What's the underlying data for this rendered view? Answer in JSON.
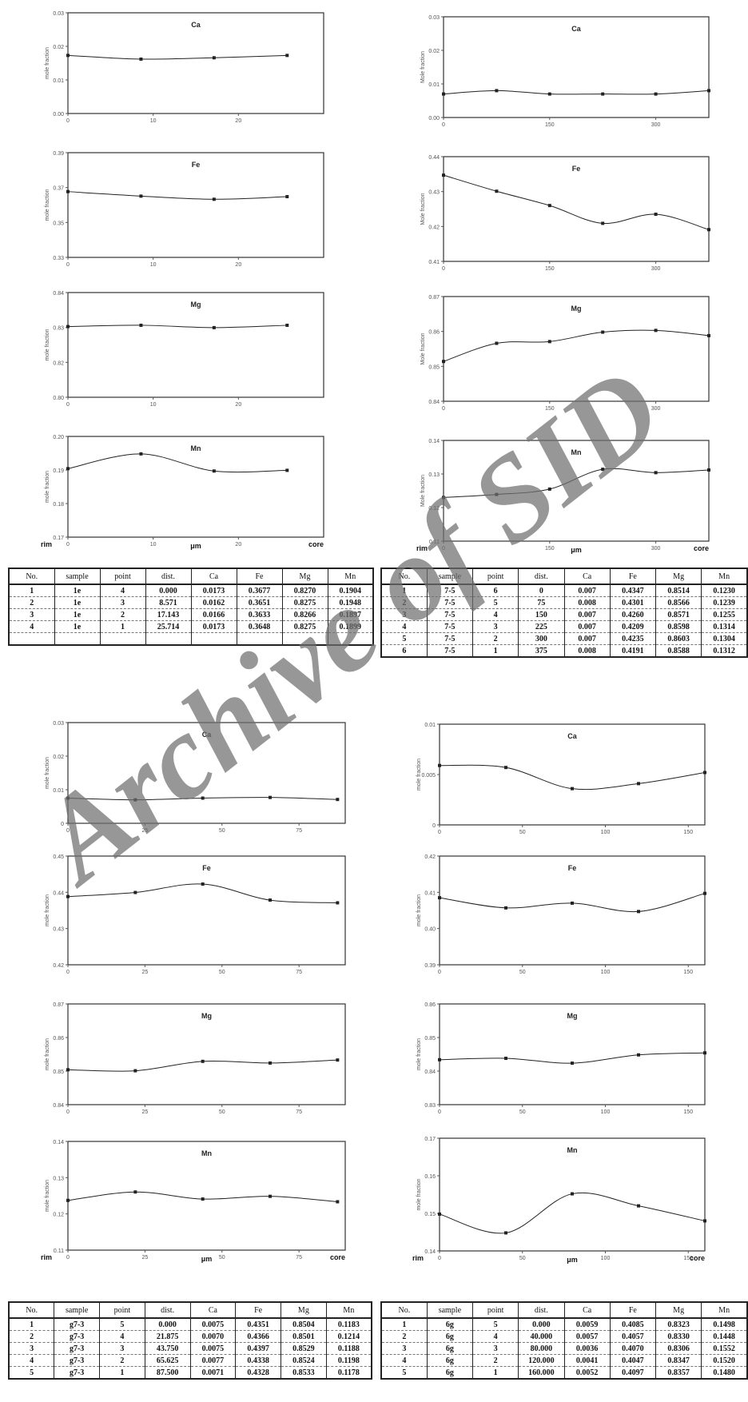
{
  "chart_data": [
    {
      "id": "A-Ca",
      "type": "line",
      "title": "Ca",
      "ylabel": "mole fraction",
      "x": [
        0,
        8.571,
        17.143,
        25.714
      ],
      "values": [
        0.0173,
        0.0162,
        0.0166,
        0.0173
      ],
      "xlim": [
        0,
        30
      ],
      "ylim": [
        0,
        0.03
      ],
      "yticks": [
        "0.03",
        "0.02",
        "0.01",
        "0.00"
      ],
      "xticks": [
        "0",
        "10",
        "20"
      ],
      "xtick_vals": [
        0,
        10,
        20
      ]
    },
    {
      "id": "A-Fe",
      "type": "line",
      "title": "Fe",
      "ylabel": "mole fraction",
      "x": [
        0,
        8.571,
        17.143,
        25.714
      ],
      "values": [
        0.3677,
        0.3651,
        0.3633,
        0.3648
      ],
      "xlim": [
        0,
        30
      ],
      "ylim": [
        0.33,
        0.39
      ],
      "yticks": [
        "0.39",
        "0.37",
        "0.35",
        "0.33"
      ],
      "xticks": [
        "0",
        "10",
        "20"
      ],
      "xtick_vals": [
        0,
        10,
        20
      ]
    },
    {
      "id": "A-Mg",
      "type": "line",
      "title": "Mg",
      "ylabel": "mole fraction",
      "x": [
        0,
        8.571,
        17.143,
        25.714
      ],
      "values": [
        0.827,
        0.8275,
        0.8266,
        0.8275
      ],
      "xlim": [
        0,
        30
      ],
      "ylim": [
        0.8,
        0.84
      ],
      "yticks": [
        "0.84",
        "0.83",
        "0.82",
        "0.80"
      ],
      "xticks": [
        "0",
        "10",
        "20"
      ],
      "xtick_vals": [
        0,
        10,
        20
      ]
    },
    {
      "id": "A-Mn",
      "type": "line",
      "title": "Mn",
      "ylabel": "mole fraction",
      "x": [
        0,
        8.571,
        17.143,
        25.714
      ],
      "values": [
        0.1904,
        0.1948,
        0.1897,
        0.1899
      ],
      "xlim": [
        0,
        30
      ],
      "ylim": [
        0.17,
        0.2
      ],
      "yticks": [
        "0.20",
        "0.19",
        "0.18",
        "0.17"
      ],
      "xticks": [
        "0",
        "10",
        "20"
      ],
      "xtick_vals": [
        0,
        10,
        20
      ],
      "xlabel": "μm",
      "rim": "rim",
      "core": "core"
    },
    {
      "id": "B-Ca",
      "type": "line",
      "title": "Ca",
      "ylabel": "Mole fraction",
      "x": [
        0,
        75,
        150,
        225,
        300,
        375
      ],
      "values": [
        0.007,
        0.008,
        0.007,
        0.007,
        0.007,
        0.008
      ],
      "xlim": [
        0,
        375
      ],
      "ylim": [
        0,
        0.03
      ],
      "yticks": [
        "0.03",
        "0.02",
        "0.01",
        "0.00"
      ],
      "xticks": [
        "0",
        "150",
        "300"
      ],
      "xtick_vals": [
        0,
        150,
        300
      ]
    },
    {
      "id": "B-Fe",
      "type": "line",
      "title": "Fe",
      "ylabel": "Mole fraction",
      "x": [
        0,
        75,
        150,
        225,
        300,
        375
      ],
      "values": [
        0.4347,
        0.4301,
        0.426,
        0.4209,
        0.4235,
        0.4191
      ],
      "xlim": [
        0,
        375
      ],
      "ylim": [
        0.41,
        0.44
      ],
      "yticks": [
        "0.44",
        "0.43",
        "0.42",
        "0.41"
      ],
      "xticks": [
        "0",
        "150",
        "300"
      ],
      "xtick_vals": [
        0,
        150,
        300
      ]
    },
    {
      "id": "B-Mg",
      "type": "line",
      "title": "Mg",
      "ylabel": "Mole fraction",
      "x": [
        0,
        75,
        150,
        225,
        300,
        375
      ],
      "values": [
        0.8514,
        0.8566,
        0.8571,
        0.8598,
        0.8603,
        0.8588
      ],
      "xlim": [
        0,
        375
      ],
      "ylim": [
        0.84,
        0.87
      ],
      "yticks": [
        "0.87",
        "0.86",
        "0.85",
        "0.84"
      ],
      "xticks": [
        "0",
        "150",
        "300"
      ],
      "xtick_vals": [
        0,
        150,
        300
      ]
    },
    {
      "id": "B-Mn",
      "type": "line",
      "title": "Mn",
      "ylabel": "Mole fraction",
      "x": [
        0,
        75,
        150,
        225,
        300,
        375
      ],
      "values": [
        0.123,
        0.1239,
        0.1255,
        0.1314,
        0.1304,
        0.1312
      ],
      "xlim": [
        0,
        375
      ],
      "ylim": [
        0.11,
        0.14
      ],
      "yticks": [
        "0.14",
        "0.13",
        "0.12",
        "0.11"
      ],
      "xticks": [
        "0",
        "150",
        "300"
      ],
      "xtick_vals": [
        0,
        150,
        300
      ],
      "xlabel": "μm",
      "rim": "rim",
      "core": "core"
    },
    {
      "id": "C-Ca",
      "type": "line",
      "title": "Ca",
      "ylabel": "mole fraction",
      "x": [
        0,
        21.875,
        43.75,
        65.625,
        87.5
      ],
      "values": [
        0.0075,
        0.007,
        0.0075,
        0.0077,
        0.0071
      ],
      "xlim": [
        0,
        90
      ],
      "ylim": [
        0,
        0.03
      ],
      "yticks": [
        "0.03",
        "0.02",
        "0.01",
        "0"
      ],
      "xticks": [
        "0",
        "25",
        "50",
        "75"
      ],
      "xtick_vals": [
        0,
        25,
        50,
        75
      ]
    },
    {
      "id": "C-Fe",
      "type": "line",
      "title": "Fe",
      "ylabel": "mole fraction",
      "x": [
        0,
        21.875,
        43.75,
        65.625,
        87.5
      ],
      "values": [
        0.4351,
        0.4366,
        0.4397,
        0.4338,
        0.4328
      ],
      "xlim": [
        0,
        90
      ],
      "ylim": [
        0.41,
        0.45
      ],
      "yticks": [
        "0.45",
        "0.44",
        "0.43",
        "0.42"
      ],
      "xticks": [
        "0",
        "25",
        "50",
        "75"
      ],
      "xtick_vals": [
        0,
        25,
        50,
        75
      ]
    },
    {
      "id": "C-Mg",
      "type": "line",
      "title": "Mg",
      "ylabel": "mole fraction",
      "x": [
        0,
        21.875,
        43.75,
        65.625,
        87.5
      ],
      "values": [
        0.8504,
        0.8501,
        0.8529,
        0.8524,
        0.8533
      ],
      "xlim": [
        0,
        90
      ],
      "ylim": [
        0.84,
        0.87
      ],
      "yticks": [
        "0.87",
        "0.86",
        "0.85",
        "0.84"
      ],
      "xticks": [
        "0",
        "25",
        "50",
        "75"
      ],
      "xtick_vals": [
        0,
        25,
        50,
        75
      ]
    },
    {
      "id": "C-Mn",
      "type": "line",
      "title": "Mn",
      "ylabel": "mole fraction",
      "x": [
        0,
        21.875,
        43.75,
        65.625,
        87.5
      ],
      "values": [
        0.1183,
        0.1214,
        0.1188,
        0.1198,
        0.1178
      ],
      "xlim": [
        0,
        90
      ],
      "ylim": [
        0.1,
        0.14
      ],
      "yticks": [
        "0.14",
        "0.13",
        "0.12",
        "0.11"
      ],
      "xticks": [
        "0",
        "25",
        "50",
        "75"
      ],
      "xtick_vals": [
        0,
        25,
        50,
        75
      ],
      "xlabel": "μm",
      "rim": "rim",
      "core": "core"
    },
    {
      "id": "D-Ca",
      "type": "line",
      "title": "Ca",
      "ylabel": "mole fraction",
      "x": [
        0,
        40,
        80,
        120,
        160
      ],
      "values": [
        0.0059,
        0.0057,
        0.0036,
        0.0041,
        0.0052
      ],
      "xlim": [
        0,
        160
      ],
      "ylim": [
        0,
        0.01
      ],
      "yticks": [
        "0.01",
        "0.005",
        "0"
      ],
      "xticks": [
        "0",
        "50",
        "100",
        "150"
      ],
      "xtick_vals": [
        0,
        50,
        100,
        150
      ]
    },
    {
      "id": "D-Fe",
      "type": "line",
      "title": "Fe",
      "ylabel": "mole fraction",
      "x": [
        0,
        40,
        80,
        120,
        160
      ],
      "values": [
        0.4085,
        0.4057,
        0.407,
        0.4047,
        0.4097
      ],
      "xlim": [
        0,
        160
      ],
      "ylim": [
        0.39,
        0.42
      ],
      "yticks": [
        "0.42",
        "0.41",
        "0.40",
        "0.39"
      ],
      "xticks": [
        "0",
        "50",
        "100",
        "150"
      ],
      "xtick_vals": [
        0,
        50,
        100,
        150
      ]
    },
    {
      "id": "D-Mg",
      "type": "line",
      "title": "Mg",
      "ylabel": "mole fraction",
      "x": [
        0,
        40,
        80,
        120,
        160
      ],
      "values": [
        0.8323,
        0.833,
        0.8306,
        0.8347,
        0.8357
      ],
      "xlim": [
        0,
        160
      ],
      "ylim": [
        0.81,
        0.86
      ],
      "yticks": [
        "0.86",
        "0.85",
        "0.84",
        "0.83"
      ],
      "xticks": [
        "0",
        "50",
        "100",
        "150"
      ],
      "xtick_vals": [
        0,
        50,
        100,
        150
      ]
    },
    {
      "id": "D-Mn",
      "type": "line",
      "title": "Mn",
      "ylabel": "mole fraction",
      "x": [
        0,
        40,
        80,
        120,
        160
      ],
      "values": [
        0.1498,
        0.1448,
        0.1552,
        0.152,
        0.148
      ],
      "xlim": [
        0,
        160
      ],
      "ylim": [
        0.14,
        0.17
      ],
      "yticks": [
        "0.17",
        "0.16",
        "0.15",
        "0.14"
      ],
      "xticks": [
        "0",
        "50",
        "100",
        "150"
      ],
      "xtick_vals": [
        0,
        50,
        100,
        150
      ],
      "xlabel": "μm",
      "rim": "rim",
      "core": "core"
    }
  ],
  "tables": [
    {
      "id": "T-A",
      "headers": [
        "No.",
        "sample",
        "point",
        "dist.",
        "Ca",
        "Fe",
        "Mg",
        "Mn"
      ],
      "rows": [
        [
          "1",
          "1e",
          "4",
          "0.000",
          "0.0173",
          "0.3677",
          "0.8270",
          "0.1904"
        ],
        [
          "2",
          "1e",
          "3",
          "8.571",
          "0.0162",
          "0.3651",
          "0.8275",
          "0.1948"
        ],
        [
          "3",
          "1e",
          "2",
          "17.143",
          "0.0166",
          "0.3633",
          "0.8266",
          "0.1897"
        ],
        [
          "4",
          "1e",
          "1",
          "25.714",
          "0.0173",
          "0.3648",
          "0.8275",
          "0.1899"
        ],
        [
          "",
          "",
          "",
          "",
          "",
          "",
          "",
          ""
        ]
      ]
    },
    {
      "id": "T-B",
      "headers": [
        "No.",
        "sample",
        "point",
        "dist.",
        "Ca",
        "Fe",
        "Mg",
        "Mn"
      ],
      "rows": [
        [
          "1",
          "7-5",
          "6",
          "0",
          "0.007",
          "0.4347",
          "0.8514",
          "0.1230"
        ],
        [
          "2",
          "7-5",
          "5",
          "75",
          "0.008",
          "0.4301",
          "0.8566",
          "0.1239"
        ],
        [
          "3",
          "7-5",
          "4",
          "150",
          "0.007",
          "0.4260",
          "0.8571",
          "0.1255"
        ],
        [
          "4",
          "7-5",
          "3",
          "225",
          "0.007",
          "0.4209",
          "0.8598",
          "0.1314"
        ],
        [
          "5",
          "7-5",
          "2",
          "300",
          "0.007",
          "0.4235",
          "0.8603",
          "0.1304"
        ],
        [
          "6",
          "7-5",
          "1",
          "375",
          "0.008",
          "0.4191",
          "0.8588",
          "0.1312"
        ]
      ]
    },
    {
      "id": "T-C",
      "headers": [
        "No.",
        "sample",
        "point",
        "dist.",
        "Ca",
        "Fe",
        "Mg",
        "Mn"
      ],
      "rows": [
        [
          "1",
          "g7-3",
          "5",
          "0.000",
          "0.0075",
          "0.4351",
          "0.8504",
          "0.1183"
        ],
        [
          "2",
          "g7-3",
          "4",
          "21.875",
          "0.0070",
          "0.4366",
          "0.8501",
          "0.1214"
        ],
        [
          "3",
          "g7-3",
          "3",
          "43.750",
          "0.0075",
          "0.4397",
          "0.8529",
          "0.1188"
        ],
        [
          "4",
          "g7-3",
          "2",
          "65.625",
          "0.0077",
          "0.4338",
          "0.8524",
          "0.1198"
        ],
        [
          "5",
          "g7-3",
          "1",
          "87.500",
          "0.0071",
          "0.4328",
          "0.8533",
          "0.1178"
        ]
      ]
    },
    {
      "id": "T-D",
      "headers": [
        "No.",
        "sample",
        "point",
        "dist.",
        "Ca",
        "Fe",
        "Mg",
        "Mn"
      ],
      "rows": [
        [
          "1",
          "6g",
          "5",
          "0.000",
          "0.0059",
          "0.4085",
          "0.8323",
          "0.1498"
        ],
        [
          "2",
          "6g",
          "4",
          "40.000",
          "0.0057",
          "0.4057",
          "0.8330",
          "0.1448"
        ],
        [
          "3",
          "6g",
          "3",
          "80.000",
          "0.0036",
          "0.4070",
          "0.8306",
          "0.1552"
        ],
        [
          "4",
          "6g",
          "2",
          "120.000",
          "0.0041",
          "0.4047",
          "0.8347",
          "0.1520"
        ],
        [
          "5",
          "6g",
          "1",
          "160.000",
          "0.0052",
          "0.4097",
          "0.8357",
          "0.1480"
        ]
      ]
    }
  ],
  "watermark": "Archive of SID"
}
